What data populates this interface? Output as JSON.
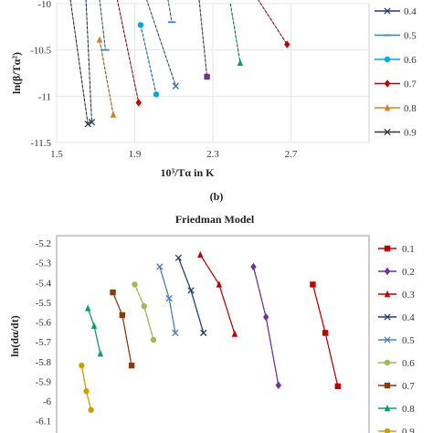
{
  "chart_data": [
    {
      "type": "line",
      "title": "",
      "xlabel": "10³/Tα in K",
      "ylabel": "ln(β/Tα²)",
      "caption": "(b)",
      "xlim": [
        1.5,
        3.1
      ],
      "ylim": [
        -11.5,
        -10
      ],
      "xticks": [
        "1.5",
        "1.9",
        "2.3",
        "2.7"
      ],
      "yticks": [
        "-10",
        "-10.5",
        "-11",
        "-11.5"
      ],
      "legend_position": "right",
      "series": [
        {
          "name": "0.4",
          "color": "#1f3e6b",
          "marker": "x",
          "x": [
            1.65,
            1.68
          ],
          "y": [
            -9.95,
            -11.28
          ]
        },
        {
          "name": "0.5",
          "color": "#4a7ebb",
          "marker": "-",
          "x": [
            1.72,
            1.75
          ],
          "y": [
            -9.95,
            -10.5
          ]
        },
        {
          "name": "0.6",
          "color": "#00a8e0",
          "marker": "o",
          "x": [
            1.93,
            2.01
          ],
          "y": [
            -10.23,
            -10.98
          ]
        },
        {
          "name": "0.7",
          "color": "#c00000",
          "marker": "d",
          "x": [
            1.81,
            1.92
          ],
          "y": [
            -9.95,
            -11.07
          ]
        },
        {
          "name": "0.8",
          "color": "#d0802a",
          "marker": "^",
          "x": [
            1.72,
            1.79
          ],
          "y": [
            -10.39,
            -11.2
          ]
        },
        {
          "name": "0.9",
          "color": "#333333",
          "marker": "x",
          "x": [
            1.57,
            1.66
          ],
          "y": [
            -9.95,
            -11.3
          ]
        }
      ],
      "extra_lines": [
        {
          "color": "#3a6aa0",
          "marker": "x",
          "x": [
            1.96,
            2.11
          ],
          "y": [
            -9.95,
            -10.89
          ]
        },
        {
          "color": "#6a3a8a",
          "marker": "s",
          "x": [
            2.23,
            2.27
          ],
          "y": [
            -9.96,
            -10.79
          ]
        },
        {
          "color": "#00a070",
          "marker": "^",
          "x": [
            2.39,
            2.44
          ],
          "y": [
            -10.0,
            -10.64
          ]
        },
        {
          "color": "#c00000",
          "marker": "d",
          "x": [
            2.53,
            2.68
          ],
          "y": [
            -9.95,
            -10.44
          ]
        },
        {
          "color": "#4a7ebb",
          "marker": "-",
          "x": [
            2.07,
            2.09
          ],
          "y": [
            -9.95,
            -10.2
          ]
        }
      ]
    },
    {
      "type": "line",
      "title": "Friedman Model",
      "xlabel": "",
      "ylabel": "ln(dα/dt)",
      "ylim": [
        -6.1,
        -5.2
      ],
      "yticks": [
        "-5.2",
        "-5.3",
        "-5.4",
        "-5.5",
        "-5.6",
        "-5.7",
        "-5.8",
        "-5.9",
        "-6",
        "-6.1"
      ],
      "legend_position": "right",
      "series": [
        {
          "name": "0.1",
          "color": "#c00000",
          "marker": "s",
          "x": [
            0.82,
            0.86,
            0.9
          ],
          "y": [
            -5.41,
            -5.655,
            -5.925
          ]
        },
        {
          "name": "0.2",
          "color": "#7030a0",
          "marker": "d",
          "x": [
            0.63,
            0.67,
            0.71
          ],
          "y": [
            -5.32,
            -5.575,
            -5.92
          ]
        },
        {
          "name": "0.3",
          "color": "#c00000",
          "marker": "^",
          "x": [
            0.46,
            0.52,
            0.57
          ],
          "y": [
            -5.26,
            -5.41,
            -5.66
          ]
        },
        {
          "name": "0.4",
          "color": "#1f3e6b",
          "marker": "x",
          "x": [
            0.39,
            0.43,
            0.47
          ],
          "y": [
            -5.275,
            -5.44,
            -5.655
          ]
        },
        {
          "name": "0.5",
          "color": "#4a7ebb",
          "marker": "x",
          "x": [
            0.33,
            0.36,
            0.38
          ],
          "y": [
            -5.32,
            -5.48,
            -5.655
          ]
        },
        {
          "name": "0.6",
          "color": "#9bbb59",
          "marker": "o",
          "x": [
            0.25,
            0.28,
            0.31
          ],
          "y": [
            -5.41,
            -5.52,
            -5.69
          ]
        },
        {
          "name": "0.7",
          "color": "#8b3a0e",
          "marker": "s",
          "x": [
            0.18,
            0.21,
            0.24
          ],
          "y": [
            -5.45,
            -5.565,
            -5.82
          ]
        },
        {
          "name": "0.8",
          "color": "#00a070",
          "marker": "^",
          "x": [
            0.1,
            0.12,
            0.14
          ],
          "y": [
            -5.53,
            -5.62,
            -5.76
          ]
        },
        {
          "name": "0.9",
          "color": "#c8a000",
          "marker": "o",
          "x": [
            0.08,
            0.095,
            0.11
          ],
          "y": [
            -5.82,
            -5.95,
            -6.045
          ]
        }
      ]
    }
  ]
}
